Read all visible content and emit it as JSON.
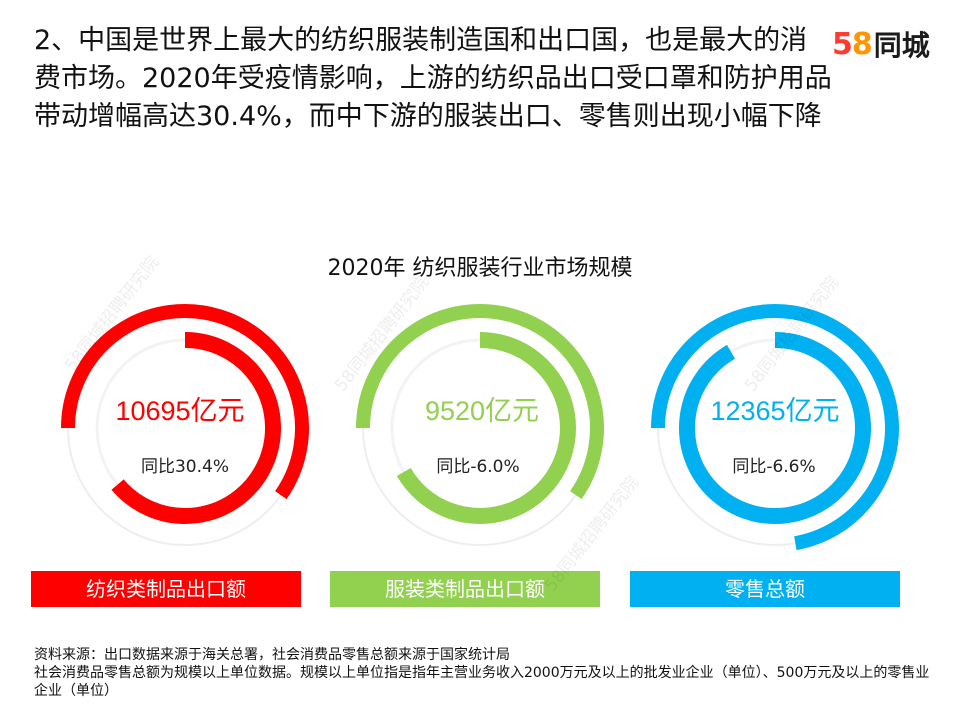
{
  "header": {
    "title": "2、中国是世界上最大的纺织服装制造国和出口国，也是最大的消费市场。2020年受疫情影响，上游的纺织品出口受口罩和防护用品带动增幅高达30.4%，而中下游的服装出口、零售则出现小幅下降",
    "logo_number": "58",
    "logo_text": "同城",
    "logo_colors": [
      "#ff3b30",
      "#ff9500",
      "#ffcc00",
      "#34c759"
    ]
  },
  "watermark": "58同城招聘研究院",
  "chart_data": {
    "type": "ring",
    "title": "2020年 纺织服装行业市场规模",
    "unit": "亿元",
    "items": [
      {
        "category": "纺织类制品出口额",
        "value": 10695,
        "value_label": "10695亿元",
        "yoy_label": "同比30.4%",
        "yoy": 30.4,
        "color": "#ff0000"
      },
      {
        "category": "服装类制品出口额",
        "value": 9520,
        "value_label": "9520亿元",
        "yoy_label": "同比-6.0%",
        "yoy": -6.0,
        "color": "#92d050"
      },
      {
        "category": "零售总额",
        "value": 12365,
        "value_label": "12365亿元",
        "yoy_label": "同比-6.6%",
        "yoy": -6.6,
        "color": "#00b0f0"
      }
    ]
  },
  "source": {
    "line1": "资料来源：出口数据来源于海关总署，社会消费品零售总额来源于国家统计局",
    "line2": "社会消费品零售总额为规模以上单位数据。规模以上单位指是指年主营业务收入2000万元及以上的批发业企业（单位）、500万元及以上的零售业企业（单位）"
  }
}
